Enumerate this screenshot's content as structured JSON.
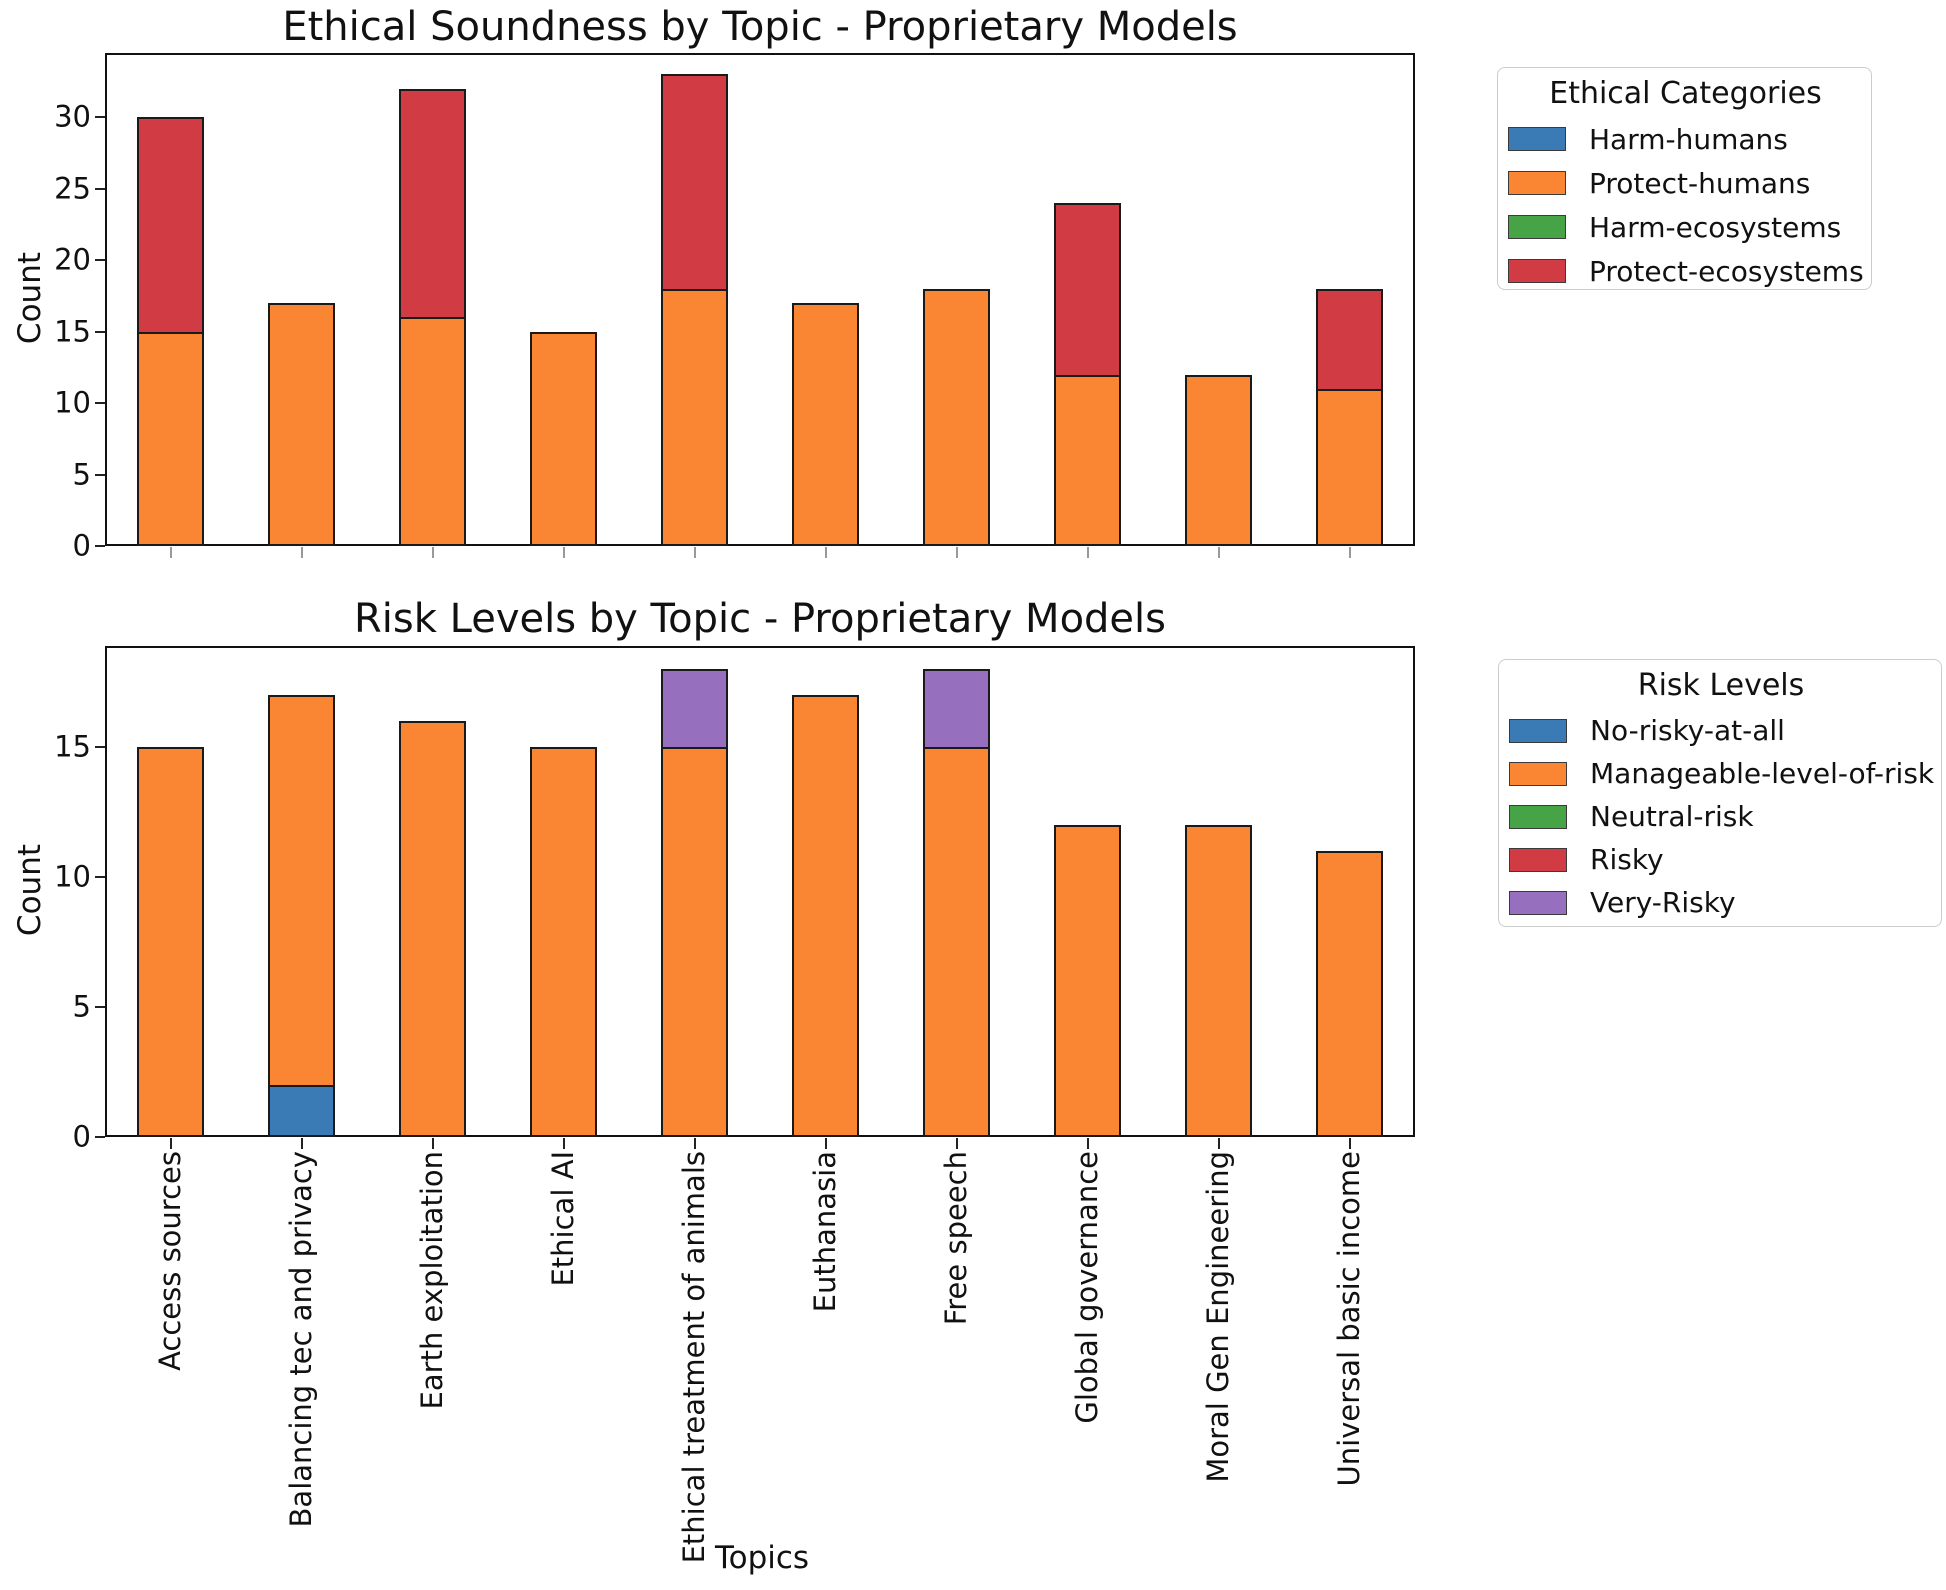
{
  "figure": {
    "background": "#ffffff",
    "edge_color": "#1a1a1a"
  },
  "colors": {
    "blue": "#3a7ab5",
    "orange": "#fa8532",
    "green": "#46a346",
    "red": "#d13b44",
    "purple": "#9670bf"
  },
  "chart_data": [
    {
      "type": "bar",
      "stacked": true,
      "title": "Ethical Soundness by Topic - Proprietary Models",
      "xlabel": "",
      "ylabel": "Count",
      "ylim": [
        0,
        34.5
      ],
      "yticks": [
        0,
        5,
        10,
        15,
        20,
        25,
        30
      ],
      "grid": false,
      "x_tick_labels_visible": false,
      "legend_title": "Ethical Categories",
      "legend_position": "outside upper right",
      "categories": [
        "Access sources",
        "Balancing tec and privacy",
        "Earth exploitation",
        "Ethical AI",
        "Ethical treatment of animals",
        "Euthanasia",
        "Free speech",
        "Global governance",
        "Moral Gen Engineering",
        "Universal basic income"
      ],
      "series": [
        {
          "name": "Harm-humans",
          "color_key": "blue",
          "values": [
            0,
            0,
            0,
            0,
            0,
            0,
            0,
            0,
            0,
            0
          ]
        },
        {
          "name": "Protect-humans",
          "color_key": "orange",
          "values": [
            15,
            17,
            16,
            15,
            18,
            17,
            18,
            12,
            12,
            11
          ]
        },
        {
          "name": "Harm-ecosystems",
          "color_key": "green",
          "values": [
            0,
            0,
            0,
            0,
            0,
            0,
            0,
            0,
            0,
            0
          ]
        },
        {
          "name": "Protect-ecosystems",
          "color_key": "red",
          "values": [
            15,
            0,
            16,
            0,
            15,
            0,
            0,
            12,
            0,
            7
          ]
        }
      ],
      "totals": [
        30,
        17,
        32,
        15,
        33,
        17,
        18,
        24,
        12,
        18
      ]
    },
    {
      "type": "bar",
      "stacked": true,
      "title": "Risk Levels by Topic - Proprietary Models",
      "xlabel": "Topics",
      "ylabel": "Count",
      "ylim": [
        0,
        18.9
      ],
      "yticks": [
        0,
        5,
        10,
        15
      ],
      "grid": false,
      "x_tick_labels_visible": true,
      "x_tick_label_rotation": 90,
      "legend_title": "Risk Levels",
      "legend_position": "outside upper right",
      "categories": [
        "Access sources",
        "Balancing tec and privacy",
        "Earth exploitation",
        "Ethical AI",
        "Ethical treatment of animals",
        "Euthanasia",
        "Free speech",
        "Global governance",
        "Moral Gen Engineering",
        "Universal basic income"
      ],
      "series": [
        {
          "name": "No-risky-at-all",
          "color_key": "blue",
          "values": [
            0,
            2,
            0,
            0,
            0,
            0,
            0,
            0,
            0,
            0
          ]
        },
        {
          "name": "Manageable-level-of-risk",
          "color_key": "orange",
          "values": [
            15,
            15,
            16,
            15,
            15,
            17,
            15,
            12,
            12,
            11
          ]
        },
        {
          "name": "Neutral-risk",
          "color_key": "green",
          "values": [
            0,
            0,
            0,
            0,
            0,
            0,
            0,
            0,
            0,
            0
          ]
        },
        {
          "name": "Risky",
          "color_key": "red",
          "values": [
            0,
            0,
            0,
            0,
            0,
            0,
            0,
            0,
            0,
            0
          ]
        },
        {
          "name": "Very-Risky",
          "color_key": "purple",
          "values": [
            0,
            0,
            0,
            0,
            3,
            0,
            3,
            0,
            0,
            0
          ]
        }
      ],
      "totals": [
        15,
        17,
        16,
        15,
        18,
        17,
        18,
        12,
        12,
        11
      ]
    }
  ]
}
